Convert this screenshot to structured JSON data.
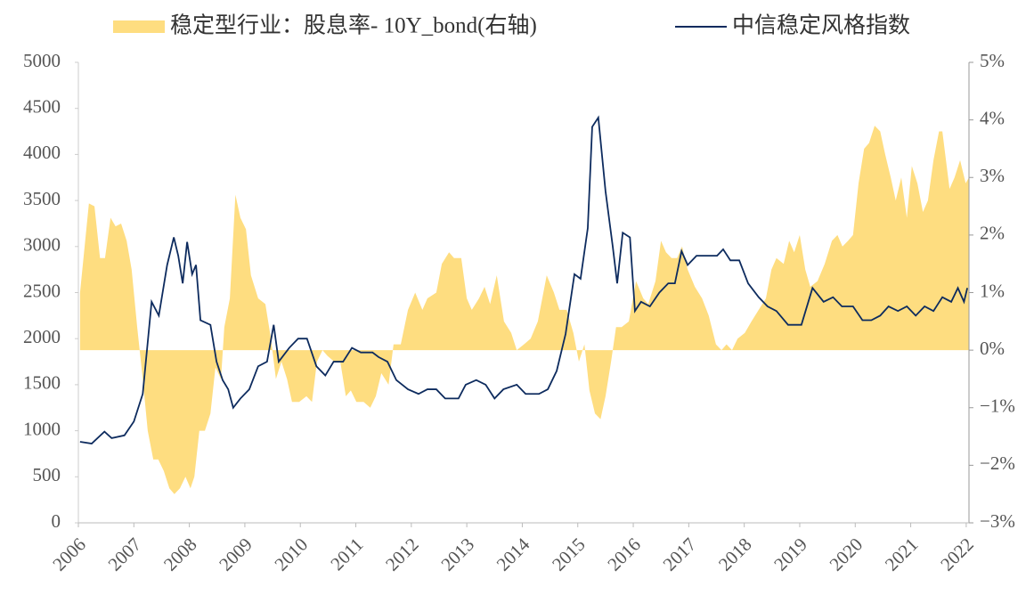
{
  "chart_data": {
    "type": "area-line",
    "series": [
      {
        "name": "稳定型行业：股息率- 10Y_bond(右轴)",
        "color": "#fedd80",
        "axis": "y2",
        "kind": "area",
        "x": [
          2006.03,
          2006.19,
          2006.29,
          2006.39,
          2006.48,
          2006.58,
          2006.67,
          2006.77,
          2006.87,
          2006.96,
          2007.06,
          2007.16,
          2007.25,
          2007.35,
          2007.44,
          2007.54,
          2007.64,
          2007.73,
          2007.83,
          2007.93,
          2008.02,
          2008.09,
          2008.18,
          2008.28,
          2008.38,
          2008.47,
          2008.57,
          2008.63,
          2008.73,
          2008.83,
          2008.92,
          2009.02,
          2009.11,
          2009.24,
          2009.37,
          2009.47,
          2009.56,
          2009.66,
          2009.76,
          2009.85,
          2009.98,
          2010.11,
          2010.21,
          2010.3,
          2010.4,
          2010.49,
          2010.61,
          2010.72,
          2010.82,
          2010.91,
          2011.01,
          2011.14,
          2011.26,
          2011.36,
          2011.46,
          2011.59,
          2011.68,
          2011.81,
          2011.94,
          2012.07,
          2012.2,
          2012.29,
          2012.45,
          2012.55,
          2012.68,
          2012.77,
          2012.9,
          2013.0,
          2013.09,
          2013.22,
          2013.32,
          2013.42,
          2013.54,
          2013.67,
          2013.8,
          2013.9,
          2014.03,
          2014.15,
          2014.28,
          2014.44,
          2014.57,
          2014.67,
          2014.8,
          2014.92,
          2015.02,
          2015.12,
          2015.21,
          2015.31,
          2015.41,
          2015.5,
          2015.6,
          2015.69,
          2015.79,
          2015.92,
          2016.05,
          2016.18,
          2016.27,
          2016.4,
          2016.5,
          2016.59,
          2016.69,
          2016.79,
          2016.88,
          2016.98,
          2017.11,
          2017.24,
          2017.36,
          2017.49,
          2017.59,
          2017.68,
          2017.78,
          2017.88,
          2018.01,
          2018.13,
          2018.26,
          2018.39,
          2018.49,
          2018.58,
          2018.71,
          2018.81,
          2018.9,
          2019.0,
          2019.1,
          2019.19,
          2019.32,
          2019.45,
          2019.58,
          2019.68,
          2019.77,
          2019.87,
          2019.96,
          2020.06,
          2020.16,
          2020.25,
          2020.35,
          2020.45,
          2020.54,
          2020.64,
          2020.73,
          2020.83,
          2020.93,
          2021.02,
          2021.12,
          2021.22,
          2021.31,
          2021.41,
          2021.51,
          2021.57,
          2021.7,
          2021.79,
          2021.89,
          2021.99,
          2022.05
        ],
        "values": [
          1.0,
          2.55,
          2.5,
          1.6,
          1.6,
          2.3,
          2.15,
          2.2,
          1.9,
          1.4,
          0.4,
          -0.5,
          -1.4,
          -1.9,
          -1.9,
          -2.1,
          -2.4,
          -2.5,
          -2.4,
          -2.2,
          -2.4,
          -2.2,
          -1.4,
          -1.4,
          -1.1,
          -0.3,
          -0.5,
          0.4,
          0.9,
          2.7,
          2.3,
          2.1,
          1.3,
          0.9,
          0.8,
          0.2,
          -0.5,
          -0.2,
          -0.5,
          -0.9,
          -0.9,
          -0.8,
          -0.9,
          -0.2,
          0.0,
          -0.1,
          -0.2,
          -0.2,
          -0.8,
          -0.7,
          -0.9,
          -0.9,
          -1.0,
          -0.8,
          -0.4,
          -0.6,
          0.1,
          0.1,
          0.7,
          1.0,
          0.7,
          0.9,
          1.0,
          1.5,
          1.7,
          1.6,
          1.6,
          0.9,
          0.7,
          0.9,
          1.1,
          0.8,
          1.3,
          0.5,
          0.3,
          0.0,
          0.1,
          0.2,
          0.5,
          1.3,
          1.0,
          0.7,
          0.7,
          0.3,
          -0.2,
          0.1,
          -0.7,
          -1.1,
          -1.2,
          -0.8,
          -0.2,
          0.4,
          0.4,
          0.5,
          1.2,
          0.9,
          0.8,
          1.2,
          1.9,
          1.7,
          1.6,
          1.6,
          1.8,
          1.4,
          1.1,
          0.9,
          0.6,
          0.1,
          0.0,
          0.1,
          0.0,
          0.2,
          0.3,
          0.5,
          0.7,
          0.9,
          1.4,
          1.6,
          1.5,
          1.9,
          1.7,
          2.0,
          1.4,
          1.1,
          1.2,
          1.5,
          1.9,
          2.0,
          1.8,
          1.9,
          2.0,
          2.9,
          3.5,
          3.6,
          3.9,
          3.8,
          3.4,
          3.0,
          2.6,
          3.0,
          2.3,
          3.2,
          2.9,
          2.4,
          2.6,
          3.3,
          3.8,
          3.8,
          2.8,
          3.0,
          3.3,
          2.9,
          3.0
        ]
      },
      {
        "name": "中信稳定风格指数",
        "color": "#0d2b5e",
        "axis": "y",
        "kind": "line",
        "x": [
          2006.03,
          2006.24,
          2006.47,
          2006.6,
          2006.83,
          2007.0,
          2007.16,
          2007.32,
          2007.45,
          2007.6,
          2007.72,
          2007.8,
          2007.88,
          2007.96,
          2008.05,
          2008.12,
          2008.2,
          2008.38,
          2008.49,
          2008.6,
          2008.7,
          2008.79,
          2008.92,
          2009.08,
          2009.24,
          2009.4,
          2009.52,
          2009.61,
          2009.8,
          2009.96,
          2010.12,
          2010.29,
          2010.45,
          2010.6,
          2010.77,
          2010.93,
          2011.09,
          2011.3,
          2011.41,
          2011.57,
          2011.73,
          2011.94,
          2012.13,
          2012.29,
          2012.45,
          2012.61,
          2012.85,
          2012.98,
          2013.17,
          2013.34,
          2013.5,
          2013.66,
          2013.9,
          2014.06,
          2014.3,
          2014.46,
          2014.62,
          2014.78,
          2014.94,
          2015.05,
          2015.18,
          2015.26,
          2015.37,
          2015.5,
          2015.63,
          2015.71,
          2015.81,
          2015.94,
          2016.03,
          2016.14,
          2016.3,
          2016.47,
          2016.63,
          2016.75,
          2016.87,
          2016.98,
          2017.14,
          2017.35,
          2017.51,
          2017.62,
          2017.75,
          2017.91,
          2018.07,
          2018.26,
          2018.42,
          2018.58,
          2018.79,
          2019.03,
          2019.23,
          2019.43,
          2019.6,
          2019.76,
          2019.96,
          2020.13,
          2020.29,
          2020.45,
          2020.6,
          2020.77,
          2020.93,
          2021.09,
          2021.25,
          2021.41,
          2021.57,
          2021.73,
          2021.85,
          2021.96,
          2022.02
        ],
        "values": [
          880,
          860,
          990,
          920,
          950,
          1100,
          1400,
          2400,
          2250,
          2800,
          3100,
          2900,
          2600,
          3050,
          2700,
          2800,
          2200,
          2150,
          1750,
          1550,
          1450,
          1250,
          1350,
          1450,
          1700,
          1750,
          2150,
          1750,
          1900,
          2000,
          2000,
          1700,
          1600,
          1750,
          1750,
          1900,
          1850,
          1850,
          1800,
          1750,
          1550,
          1450,
          1400,
          1450,
          1450,
          1350,
          1350,
          1500,
          1550,
          1500,
          1350,
          1450,
          1500,
          1400,
          1400,
          1450,
          1650,
          2050,
          2700,
          2650,
          3200,
          4300,
          4400,
          3600,
          3000,
          2600,
          3150,
          3100,
          2300,
          2400,
          2350,
          2500,
          2600,
          2600,
          2950,
          2800,
          2900,
          2900,
          2900,
          2970,
          2850,
          2850,
          2600,
          2450,
          2350,
          2300,
          2150,
          2150,
          2550,
          2400,
          2450,
          2350,
          2350,
          2200,
          2200,
          2250,
          2350,
          2300,
          2350,
          2250,
          2350,
          2300,
          2450,
          2400,
          2550,
          2400,
          2550
        ]
      }
    ],
    "xlim": [
      2006,
      2022.05
    ],
    "xticks": [
      2006,
      2007,
      2008,
      2009,
      2010,
      2011,
      2012,
      2013,
      2014,
      2015,
      2016,
      2017,
      2018,
      2019,
      2020,
      2021,
      2022
    ],
    "ylim": [
      0,
      5000
    ],
    "yticks": [
      0,
      500,
      1000,
      1500,
      2000,
      2500,
      3000,
      3500,
      4000,
      4500,
      5000
    ],
    "y2lim": [
      -3,
      5
    ],
    "y2ticks": [
      {
        "value": -3,
        "label": "−3%"
      },
      {
        "value": -2,
        "label": "−2%"
      },
      {
        "value": -1,
        "label": "−1%"
      },
      {
        "value": 0,
        "label": "0%"
      },
      {
        "value": 1,
        "label": "1%"
      },
      {
        "value": 2,
        "label": "2%"
      },
      {
        "value": 3,
        "label": "3%"
      },
      {
        "value": 4,
        "label": "4%"
      },
      {
        "value": 5,
        "label": "5%"
      }
    ],
    "grid": false,
    "legend": "top"
  }
}
